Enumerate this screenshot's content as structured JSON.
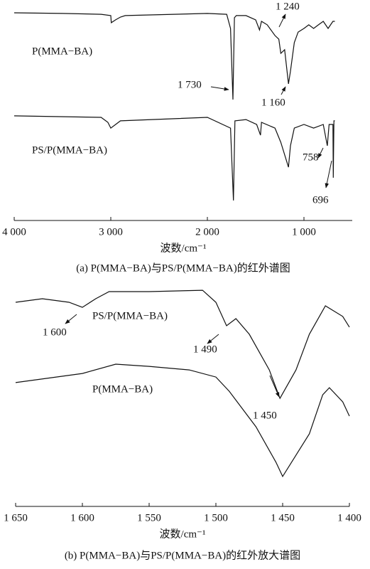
{
  "chart_data": [
    {
      "type": "line",
      "caption": "(a)  P(MMA−BA)与PS/P(MMA−BA)的红外谱图",
      "xlabel": "波数/cm⁻¹",
      "xlim": [
        4000,
        500
      ],
      "xticks": [
        {
          "value": 4000,
          "label": "4 000"
        },
        {
          "value": 3000,
          "label": "3 000"
        },
        {
          "value": 2000,
          "label": "2 000"
        },
        {
          "value": 1000,
          "label": "1 000"
        }
      ],
      "ylim": [
        0,
        100
      ],
      "annotations": [
        "1 240",
        "1 730",
        "1 160",
        "758",
        "696"
      ],
      "series": [
        {
          "name": "P(MMA−BA)",
          "color": "#111111",
          "x": [
            4000,
            3500,
            3100,
            3000,
            2995,
            2950,
            2900,
            2850,
            2000,
            1800,
            1760,
            1735,
            1720,
            1700,
            1600,
            1500,
            1460,
            1440,
            1380,
            1300,
            1260,
            1240,
            1200,
            1160,
            1140,
            1100,
            1060,
            1000,
            950,
            900,
            850,
            800,
            750,
            700,
            680
          ],
          "values": [
            96.7,
            96.4,
            96,
            95.4,
            92.1,
            93.4,
            94.7,
            95.4,
            96.4,
            96,
            89.4,
            56.3,
            94.4,
            95.4,
            95.4,
            93.4,
            88.7,
            92.7,
            91.1,
            86.1,
            84.4,
            77.8,
            79.5,
            63.6,
            69.5,
            82.8,
            87.7,
            89.4,
            91.1,
            89.4,
            91.1,
            92.7,
            89.4,
            92.7,
            92.7
          ]
        },
        {
          "name": "PS/P(MMA−BA)",
          "color": "#111111",
          "x": [
            4000,
            3100,
            3030,
            3000,
            2950,
            2900,
            2000,
            1760,
            1730,
            1715,
            1600,
            1490,
            1450,
            1440,
            1300,
            1240,
            1160,
            1140,
            1100,
            1000,
            900,
            800,
            758,
            740,
            700,
            696,
            690,
            680
          ],
          "values": [
            48.7,
            48,
            45.7,
            43,
            44.7,
            46.4,
            48,
            43,
            9.3,
            46.4,
            47,
            44.7,
            39.7,
            45.7,
            43,
            36.4,
            24.8,
            34.8,
            43,
            44.7,
            43,
            44.7,
            34.8,
            44.7,
            44.7,
            19.9,
            46.4,
            46.4
          ]
        }
      ]
    },
    {
      "type": "line",
      "caption": "(b)  P(MMA−BA)与PS/P(MMA−BA)的红外放大谱图",
      "xlabel": "波数/cm⁻¹",
      "xlim": [
        1650,
        1400
      ],
      "xticks": [
        {
          "value": 1650,
          "label": "1 650"
        },
        {
          "value": 1600,
          "label": "1 600"
        },
        {
          "value": 1550,
          "label": "1 550"
        },
        {
          "value": 1500,
          "label": "1 500"
        },
        {
          "value": 1450,
          "label": "1 450"
        },
        {
          "value": 1400,
          "label": "1 400"
        }
      ],
      "ylim": [
        0,
        100
      ],
      "annotations": [
        "1 600",
        "1 490",
        "1 450"
      ],
      "series": [
        {
          "name": "PS/P(MMA−BA)",
          "color": "#111111",
          "x": [
            1650,
            1630,
            1610,
            1600,
            1590,
            1580,
            1550,
            1510,
            1500,
            1492,
            1485,
            1475,
            1460,
            1452,
            1440,
            1430,
            1418,
            1405,
            1400
          ],
          "values": [
            92,
            93.6,
            92,
            89.7,
            93.6,
            96.8,
            96.8,
            97.4,
            92,
            81.4,
            84.6,
            77.6,
            61.5,
            48.7,
            61.5,
            77.6,
            90.4,
            85.6,
            80.8
          ]
        },
        {
          "name": "P(MMA−BA)",
          "color": "#111111",
          "x": [
            1650,
            1600,
            1575,
            1550,
            1520,
            1500,
            1490,
            1470,
            1455,
            1450,
            1440,
            1430,
            1420,
            1415,
            1405,
            1400
          ],
          "values": [
            55.8,
            59.9,
            64.1,
            63.1,
            61.5,
            58.3,
            51.9,
            35.9,
            19.9,
            13.5,
            23.1,
            32.7,
            50.3,
            53.5,
            47.1,
            40.7
          ]
        }
      ]
    }
  ]
}
